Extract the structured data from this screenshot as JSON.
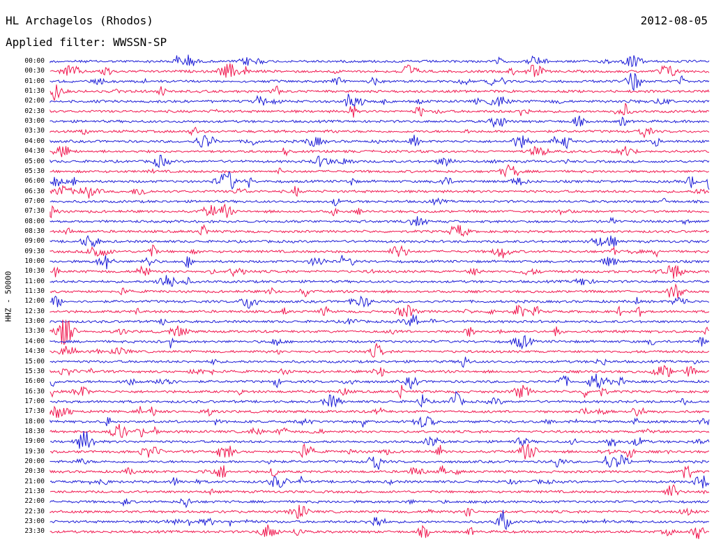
{
  "header": {
    "station": "HL Archagelos (Rhodos)",
    "date": "2012-08-05",
    "filter": "Applied filter: WWSSN-SP"
  },
  "axis_label": "HHZ - 50000",
  "colors": {
    "even_row": "#1a1ad6",
    "odd_row": "#f0164e",
    "background": "#ffffff"
  },
  "rows": [
    {
      "label": "00:00"
    },
    {
      "label": "00:30"
    },
    {
      "label": "01:00"
    },
    {
      "label": "01:30"
    },
    {
      "label": "02:00"
    },
    {
      "label": "02:30"
    },
    {
      "label": "03:00"
    },
    {
      "label": "03:30"
    },
    {
      "label": "04:00"
    },
    {
      "label": "04:30"
    },
    {
      "label": "05:00"
    },
    {
      "label": "05:30"
    },
    {
      "label": "06:00"
    },
    {
      "label": "06:30"
    },
    {
      "label": "07:00"
    },
    {
      "label": "07:30"
    },
    {
      "label": "08:00"
    },
    {
      "label": "08:30"
    },
    {
      "label": "09:00"
    },
    {
      "label": "09:30"
    },
    {
      "label": "10:00"
    },
    {
      "label": "10:30"
    },
    {
      "label": "11:00"
    },
    {
      "label": "11:30"
    },
    {
      "label": "12:00"
    },
    {
      "label": "12:30"
    },
    {
      "label": "13:00"
    },
    {
      "label": "13:30"
    },
    {
      "label": "14:00"
    },
    {
      "label": "14:30"
    },
    {
      "label": "15:00"
    },
    {
      "label": "15:30"
    },
    {
      "label": "16:00"
    },
    {
      "label": "16:30"
    },
    {
      "label": "17:00"
    },
    {
      "label": "17:30"
    },
    {
      "label": "18:00"
    },
    {
      "label": "18:30"
    },
    {
      "label": "19:00"
    },
    {
      "label": "19:30"
    },
    {
      "label": "20:00"
    },
    {
      "label": "20:30"
    },
    {
      "label": "21:00"
    },
    {
      "label": "21:30"
    },
    {
      "label": "22:00"
    },
    {
      "label": "22:30"
    },
    {
      "label": "23:00"
    },
    {
      "label": "23:30"
    }
  ]
}
